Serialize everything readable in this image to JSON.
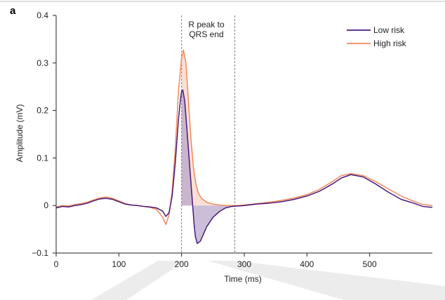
{
  "chart_data": {
    "type": "line",
    "panel_label": "a",
    "xlabel": "Time (ms)",
    "ylabel": "Amplitude (mV)",
    "xlim": [
      0,
      600
    ],
    "ylim": [
      -0.1,
      0.4
    ],
    "xticks": [
      0,
      100,
      200,
      300,
      400,
      500
    ],
    "yticks": [
      -0.1,
      0,
      0.1,
      0.2,
      0.3,
      0.4
    ],
    "ytick_labels": [
      "−0.1",
      "0",
      "0.1",
      "0.2",
      "0.3",
      "0.4"
    ],
    "annotation": {
      "lines": [
        "R peak to",
        "QRS end"
      ],
      "x_start": 200,
      "x_end": 285
    },
    "legend_position": "top-right",
    "series": [
      {
        "name": "Low risk",
        "color": "#4a1a7a",
        "fill": "#b8a8cc",
        "x": [
          0,
          10,
          20,
          30,
          40,
          50,
          60,
          70,
          80,
          90,
          100,
          110,
          120,
          130,
          140,
          150,
          160,
          170,
          175,
          180,
          185,
          190,
          195,
          198,
          200,
          202,
          205,
          208,
          212,
          216,
          220,
          222,
          225,
          230,
          235,
          240,
          245,
          250,
          260,
          270,
          280,
          290,
          300,
          320,
          340,
          360,
          380,
          400,
          420,
          440,
          455,
          470,
          490,
          510,
          530,
          550,
          570,
          585,
          600
        ],
        "y": [
          -0.005,
          -0.002,
          -0.003,
          0,
          0.002,
          0.005,
          0.01,
          0.014,
          0.015,
          0.013,
          0.008,
          0.003,
          0.001,
          0,
          -0.002,
          -0.003,
          -0.005,
          -0.012,
          -0.023,
          -0.015,
          0.02,
          0.09,
          0.18,
          0.22,
          0.24,
          0.243,
          0.22,
          0.17,
          0.1,
          0.03,
          -0.04,
          -0.065,
          -0.08,
          -0.075,
          -0.06,
          -0.045,
          -0.035,
          -0.025,
          -0.013,
          -0.005,
          -0.002,
          -0.001,
          0,
          0.003,
          0.005,
          0.008,
          0.013,
          0.02,
          0.03,
          0.045,
          0.058,
          0.065,
          0.06,
          0.045,
          0.028,
          0.013,
          0.005,
          -0.002,
          -0.004
        ]
      },
      {
        "name": "High risk",
        "color": "#f08a5d",
        "fill": "#f9c9b8",
        "x": [
          0,
          10,
          20,
          30,
          40,
          50,
          60,
          70,
          80,
          90,
          100,
          110,
          120,
          130,
          140,
          150,
          160,
          170,
          175,
          180,
          185,
          190,
          195,
          200,
          203,
          207,
          211,
          215,
          219,
          223,
          227,
          232,
          240,
          250,
          260,
          270,
          280,
          290,
          300,
          320,
          340,
          360,
          380,
          400,
          420,
          440,
          455,
          470,
          490,
          510,
          530,
          550,
          570,
          585,
          600
        ],
        "y": [
          -0.003,
          0,
          -0.001,
          0.002,
          0.004,
          0.007,
          0.012,
          0.016,
          0.018,
          0.015,
          0.01,
          0.004,
          0.001,
          0,
          -0.002,
          -0.004,
          -0.008,
          -0.025,
          -0.04,
          -0.02,
          0.03,
          0.12,
          0.24,
          0.31,
          0.327,
          0.3,
          0.22,
          0.14,
          0.08,
          0.045,
          0.025,
          0.015,
          0.007,
          0.003,
          0.001,
          0,
          0,
          0,
          0.001,
          0.004,
          0.007,
          0.011,
          0.016,
          0.023,
          0.034,
          0.05,
          0.063,
          0.067,
          0.063,
          0.05,
          0.035,
          0.02,
          0.009,
          0.002,
          0
        ]
      }
    ]
  }
}
